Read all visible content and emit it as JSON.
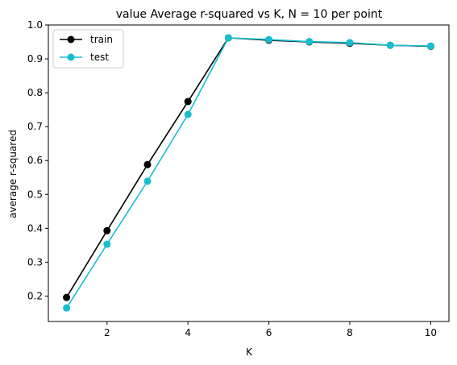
{
  "chart_data": {
    "type": "line",
    "title": "value Average r-squared vs K, N = 10 per point",
    "xlabel": "K",
    "ylabel": "average r-squared",
    "xlim": [
      0.55,
      10.45
    ],
    "ylim": [
      0.125,
      1.0
    ],
    "x": [
      1,
      2,
      3,
      4,
      5,
      6,
      7,
      8,
      9,
      10
    ],
    "x_ticks": [
      2,
      4,
      6,
      8,
      10
    ],
    "y_ticks": [
      0.2,
      0.3,
      0.4,
      0.5,
      0.6,
      0.7,
      0.8,
      0.9,
      1.0
    ],
    "x_tick_labels": [
      "2",
      "4",
      "6",
      "8",
      "10"
    ],
    "y_tick_labels": [
      "0.2",
      "0.3",
      "0.4",
      "0.5",
      "0.6",
      "0.7",
      "0.8",
      "0.9",
      "1.0"
    ],
    "grid": false,
    "legend_position": "upper-left",
    "series": [
      {
        "name": "train",
        "color": "#000000",
        "marker": "circle",
        "values": [
          0.196,
          0.393,
          0.588,
          0.774,
          0.962,
          0.955,
          0.95,
          0.946,
          0.94,
          0.937
        ]
      },
      {
        "name": "test",
        "color": "#17becf",
        "marker": "circle",
        "values": [
          0.165,
          0.353,
          0.539,
          0.736,
          0.962,
          0.957,
          0.951,
          0.948,
          0.94,
          0.938
        ]
      }
    ]
  }
}
